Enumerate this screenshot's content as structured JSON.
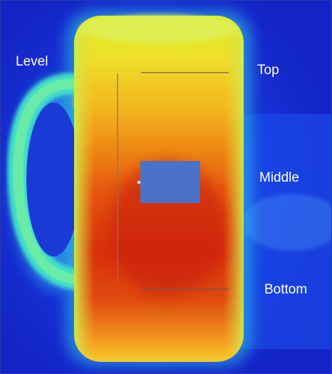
{
  "labels": {
    "level": "Level",
    "top": "Top",
    "middle": "Middle",
    "bottom": "Bottom"
  },
  "colors": {
    "background": "#1a2fd8",
    "marker_box": "#4a72c8",
    "marker_lines": "#6a5a60",
    "label_text": "#ffffff"
  }
}
